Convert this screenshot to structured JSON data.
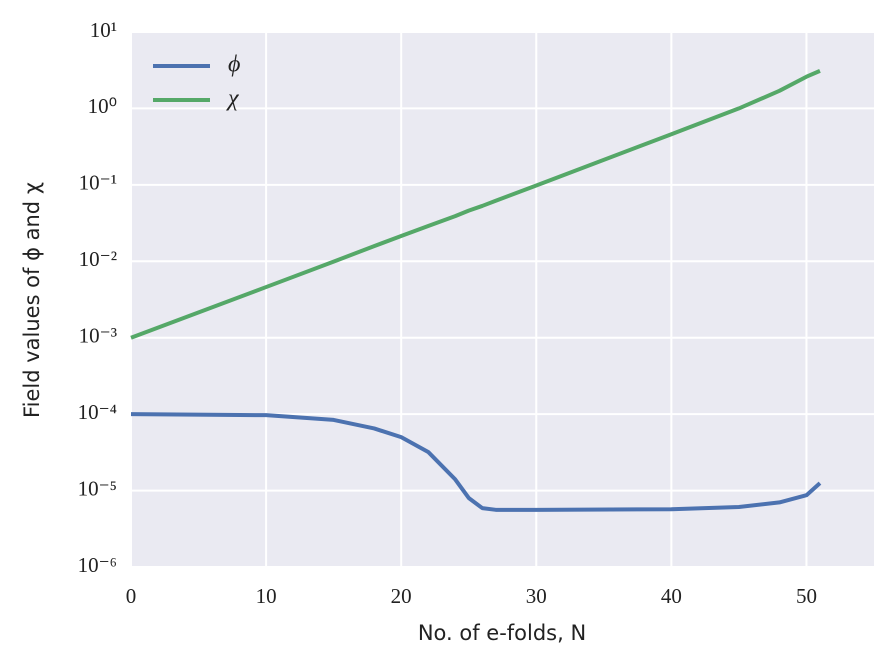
{
  "chart_data": {
    "type": "line",
    "xlabel": "No. of e-folds, N",
    "ylabel": "Field values of ϕ and χ",
    "x": [
      0,
      10,
      15,
      18,
      20,
      22,
      24,
      25,
      26,
      27,
      30,
      40,
      45,
      48,
      50,
      51
    ],
    "series": [
      {
        "name": "ϕ",
        "color": "#4c72b0",
        "values": [
          0.0001,
          9.7e-05,
          8.4e-05,
          6.5e-05,
          5e-05,
          3.2e-05,
          1.4e-05,
          8e-06,
          5.9e-06,
          5.6e-06,
          5.6e-06,
          5.7e-06,
          6.1e-06,
          7e-06,
          8.7e-06,
          1.25e-05
        ]
      },
      {
        "name": "χ",
        "color": "#55a868",
        "values": [
          0.001,
          0.0046,
          0.0099,
          0.0158,
          0.0214,
          0.029,
          0.039,
          0.046,
          0.053,
          0.062,
          0.098,
          0.46,
          1.0,
          1.7,
          2.6,
          3.1
        ]
      }
    ],
    "xlim": [
      0,
      55
    ],
    "xticks": [
      0,
      10,
      20,
      30,
      40,
      50
    ],
    "ylim": [
      1e-06,
      10
    ],
    "yticks": [
      {
        "value": 1e-06,
        "label": "10⁻⁶"
      },
      {
        "value": 1e-05,
        "label": "10⁻⁵"
      },
      {
        "value": 0.0001,
        "label": "10⁻⁴"
      },
      {
        "value": 0.001,
        "label": "10⁻³"
      },
      {
        "value": 0.01,
        "label": "10⁻²"
      },
      {
        "value": 0.1,
        "label": "10⁻¹"
      },
      {
        "value": 1,
        "label": "10⁰"
      },
      {
        "value": 10,
        "label": "10¹"
      }
    ],
    "log_y": true,
    "grid": true,
    "legend": "upper left"
  }
}
